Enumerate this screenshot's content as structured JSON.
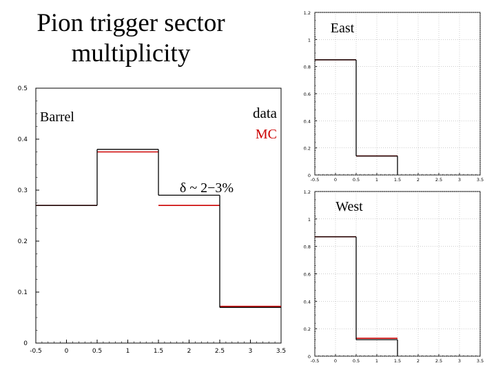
{
  "slide_title": "Pion trigger sector multiplicity",
  "chart_data": [
    {
      "type": "step-histogram",
      "panel": "Barrel",
      "annotations": [
        "Barrel",
        "data",
        "MC",
        "δ ~ 2−3%"
      ],
      "xlim": [
        -0.5,
        3.5
      ],
      "ylim": [
        0,
        0.5
      ],
      "x_ticks": [
        "-0.5",
        "0",
        "0.5",
        "1",
        "1.5",
        "2",
        "2.5",
        "3",
        "3.5"
      ],
      "y_ticks": [
        "0",
        "0.1",
        "0.2",
        "0.3",
        "0.4",
        "0.5"
      ],
      "bins": [
        -0.5,
        0.5,
        1.5,
        2.5,
        3.5
      ],
      "series": [
        {
          "name": "data",
          "values": [
            0.27,
            0.38,
            0.29,
            0.07
          ]
        },
        {
          "name": "MC",
          "values": [
            0.27,
            0.375,
            0.27,
            0.072
          ]
        }
      ]
    },
    {
      "type": "step-histogram",
      "panel": "East",
      "annotations": [
        "East"
      ],
      "xlim": [
        -0.5,
        3.5
      ],
      "ylim": [
        0,
        1.2
      ],
      "x_ticks": [
        "-0.5",
        "0",
        "0.5",
        "1",
        "1.5",
        "2",
        "2.5",
        "3",
        "3.5"
      ],
      "y_ticks": [
        "0",
        "0.2",
        "0.4",
        "0.6",
        "0.8",
        "1",
        "1.2"
      ],
      "bins": [
        -0.5,
        0.5,
        1.5,
        2.5,
        3.5
      ],
      "series": [
        {
          "name": "data",
          "values": [
            0.85,
            0.14,
            0,
            0
          ]
        },
        {
          "name": "MC",
          "values": [
            0.85,
            0.14,
            0,
            0
          ]
        }
      ]
    },
    {
      "type": "step-histogram",
      "panel": "West",
      "annotations": [
        "West"
      ],
      "xlim": [
        -0.5,
        3.5
      ],
      "ylim": [
        0,
        1.2
      ],
      "x_ticks": [
        "-0.5",
        "0",
        "0.5",
        "1",
        "1.5",
        "2",
        "2.5",
        "3",
        "3.5"
      ],
      "y_ticks": [
        "0",
        "0.2",
        "0.4",
        "0.6",
        "0.8",
        "1",
        "1.2"
      ],
      "bins": [
        -0.5,
        0.5,
        1.5,
        2.5,
        3.5
      ],
      "series": [
        {
          "name": "data",
          "values": [
            0.87,
            0.12,
            0,
            0
          ]
        },
        {
          "name": "MC",
          "values": [
            0.87,
            0.13,
            0,
            0
          ]
        }
      ]
    }
  ],
  "colors": {
    "data": "#000000",
    "mc": "#cc0000",
    "axis": "#000000"
  }
}
